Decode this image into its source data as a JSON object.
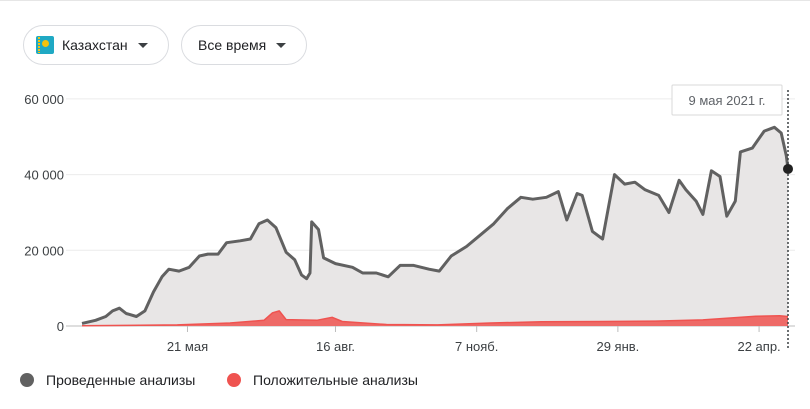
{
  "filters": {
    "country": {
      "label": "Казахстан",
      "icon": "kazakhstan-flag-icon",
      "flag_color": "#1fa9c4"
    },
    "period": {
      "label": "Все время",
      "icon": "chevron-down-icon"
    }
  },
  "tooltip": {
    "date": "9 мая 2021 г."
  },
  "chart_data": {
    "type": "area",
    "x_axis_ticks": [
      "21 мая",
      "16 авг.",
      "7 нояб.",
      "29 янв.",
      "22 апр."
    ],
    "y_axis_ticks": [
      "0",
      "20 000",
      "40 000",
      "60 000"
    ],
    "ylim": [
      0,
      65000
    ],
    "x_range": [
      "2020-03-20",
      "2021-05-09"
    ],
    "grid": "horizontal",
    "legend_position": "bottom-left",
    "series": [
      {
        "name": "Проведенные анализы",
        "color": "#616161",
        "fill": "#e8e6e6",
        "points": [
          [
            "2020-03-20",
            700
          ],
          [
            "2020-03-28",
            1500
          ],
          [
            "2020-04-03",
            2500
          ],
          [
            "2020-04-07",
            4000
          ],
          [
            "2020-04-11",
            4700
          ],
          [
            "2020-04-15",
            3300
          ],
          [
            "2020-04-21",
            2500
          ],
          [
            "2020-04-26",
            4000
          ],
          [
            "2020-05-01",
            9000
          ],
          [
            "2020-05-06",
            13000
          ],
          [
            "2020-05-10",
            15000
          ],
          [
            "2020-05-16",
            14500
          ],
          [
            "2020-05-22",
            15500
          ],
          [
            "2020-05-28",
            18500
          ],
          [
            "2020-06-02",
            19000
          ],
          [
            "2020-06-08",
            19000
          ],
          [
            "2020-06-13",
            22000
          ],
          [
            "2020-06-21",
            22500
          ],
          [
            "2020-06-27",
            23000
          ],
          [
            "2020-07-02",
            27000
          ],
          [
            "2020-07-07",
            28000
          ],
          [
            "2020-07-12",
            26000
          ],
          [
            "2020-07-18",
            19500
          ],
          [
            "2020-07-23",
            17500
          ],
          [
            "2020-07-27",
            13500
          ],
          [
            "2020-07-30",
            12500
          ],
          [
            "2020-08-01",
            14000
          ],
          [
            "2020-08-02",
            27500
          ],
          [
            "2020-08-06",
            25500
          ],
          [
            "2020-08-09",
            18000
          ],
          [
            "2020-08-16",
            16500
          ],
          [
            "2020-08-26",
            15500
          ],
          [
            "2020-09-01",
            14000
          ],
          [
            "2020-09-09",
            14000
          ],
          [
            "2020-09-16",
            13000
          ],
          [
            "2020-09-23",
            16000
          ],
          [
            "2020-10-01",
            16000
          ],
          [
            "2020-10-10",
            15000
          ],
          [
            "2020-10-16",
            14500
          ],
          [
            "2020-10-23",
            18500
          ],
          [
            "2020-11-01",
            21000
          ],
          [
            "2020-11-09",
            24000
          ],
          [
            "2020-11-17",
            27000
          ],
          [
            "2020-11-25",
            31000
          ],
          [
            "2020-12-03",
            34000
          ],
          [
            "2020-12-10",
            33500
          ],
          [
            "2020-12-18",
            34000
          ],
          [
            "2020-12-25",
            35500
          ],
          [
            "2020-12-30",
            28000
          ],
          [
            "2021-01-05",
            35000
          ],
          [
            "2021-01-08",
            34500
          ],
          [
            "2021-01-14",
            25000
          ],
          [
            "2021-01-20",
            23000
          ],
          [
            "2021-01-27",
            40000
          ],
          [
            "2021-02-02",
            37500
          ],
          [
            "2021-02-08",
            38000
          ],
          [
            "2021-02-14",
            36000
          ],
          [
            "2021-02-22",
            34500
          ],
          [
            "2021-02-28",
            30000
          ],
          [
            "2021-03-06",
            38500
          ],
          [
            "2021-03-10",
            36000
          ],
          [
            "2021-03-16",
            33000
          ],
          [
            "2021-03-20",
            29500
          ],
          [
            "2021-03-25",
            41000
          ],
          [
            "2021-03-30",
            39500
          ],
          [
            "2021-04-03",
            29000
          ],
          [
            "2021-04-08",
            33000
          ],
          [
            "2021-04-11",
            46000
          ],
          [
            "2021-04-18",
            47000
          ],
          [
            "2021-04-25",
            51500
          ],
          [
            "2021-05-01",
            52500
          ],
          [
            "2021-05-05",
            51000
          ],
          [
            "2021-05-08",
            45000
          ],
          [
            "2021-05-09",
            41500
          ]
        ]
      },
      {
        "name": "Положительные анализы",
        "color": "#ef5350",
        "fill": "#ef5350",
        "points": [
          [
            "2020-03-20",
            50
          ],
          [
            "2020-04-15",
            150
          ],
          [
            "2020-05-15",
            300
          ],
          [
            "2020-06-15",
            800
          ],
          [
            "2020-07-05",
            1500
          ],
          [
            "2020-07-10",
            3500
          ],
          [
            "2020-07-14",
            4000
          ],
          [
            "2020-07-18",
            1700
          ],
          [
            "2020-08-05",
            1500
          ],
          [
            "2020-08-14",
            2300
          ],
          [
            "2020-08-20",
            1200
          ],
          [
            "2020-09-15",
            400
          ],
          [
            "2020-10-15",
            300
          ],
          [
            "2020-11-15",
            800
          ],
          [
            "2020-12-15",
            1100
          ],
          [
            "2021-01-20",
            1200
          ],
          [
            "2021-02-20",
            1300
          ],
          [
            "2021-03-20",
            1600
          ],
          [
            "2021-04-20",
            2600
          ],
          [
            "2021-05-04",
            2700
          ],
          [
            "2021-05-09",
            2500
          ]
        ]
      }
    ]
  }
}
